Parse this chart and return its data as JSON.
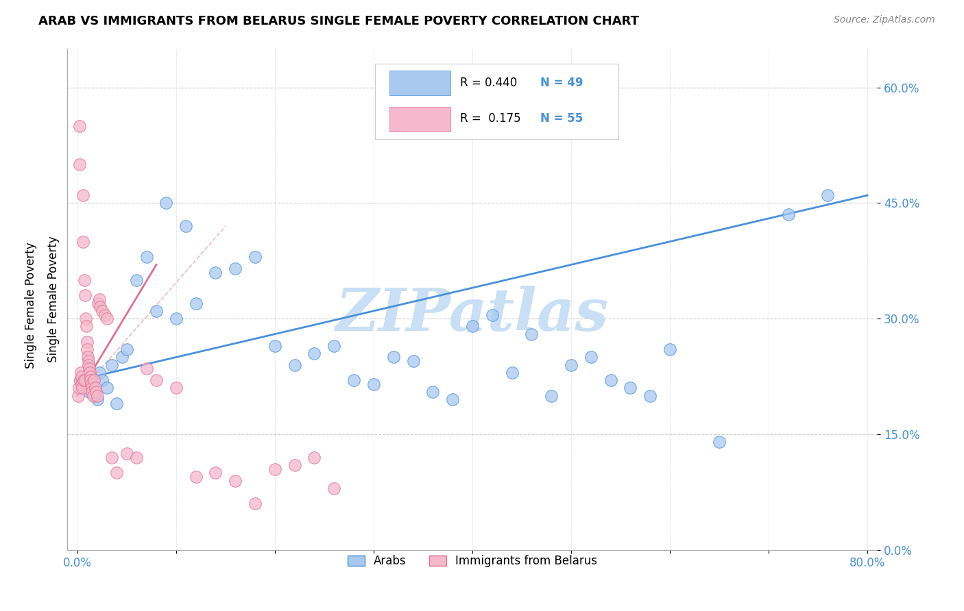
{
  "title": "ARAB VS IMMIGRANTS FROM BELARUS SINGLE FEMALE POVERTY CORRELATION CHART",
  "source": "Source: ZipAtlas.com",
  "xlabel_vals": [
    0.0,
    10.0,
    20.0,
    30.0,
    40.0,
    50.0,
    60.0,
    70.0,
    80.0
  ],
  "xlabel_shown": [
    0.0,
    80.0
  ],
  "ylabel_vals": [
    0.0,
    15.0,
    30.0,
    45.0,
    60.0
  ],
  "xlim": [
    -1,
    81
  ],
  "ylim": [
    0,
    65
  ],
  "legend_label1": "Arabs",
  "legend_label2": "Immigrants from Belarus",
  "R1": 0.44,
  "N1": 49,
  "R2": 0.175,
  "N2": 55,
  "color_arab": "#a8c8f0",
  "color_belarus": "#f5b8cc",
  "color_arab_line": "#4a90d9",
  "color_belarus_line": "#e07090",
  "watermark": "ZIPatlas",
  "watermark_color": "#c8dff5",
  "arab_x": [
    0.3,
    0.5,
    0.8,
    1.0,
    1.2,
    1.5,
    1.8,
    2.0,
    2.2,
    2.5,
    3.0,
    3.5,
    4.0,
    4.5,
    5.0,
    6.0,
    7.0,
    8.0,
    9.0,
    10.0,
    11.0,
    12.0,
    14.0,
    16.0,
    18.0,
    20.0,
    22.0,
    24.0,
    26.0,
    28.0,
    30.0,
    32.0,
    34.0,
    36.0,
    38.0,
    40.0,
    42.0,
    44.0,
    46.0,
    48.0,
    50.0,
    52.0,
    54.0,
    56.0,
    58.0,
    60.0,
    65.0,
    72.0,
    76.0
  ],
  "arab_y": [
    22.0,
    21.5,
    21.0,
    22.5,
    20.5,
    21.0,
    20.0,
    19.5,
    23.0,
    22.0,
    21.0,
    24.0,
    19.0,
    25.0,
    26.0,
    35.0,
    38.0,
    31.0,
    45.0,
    30.0,
    42.0,
    32.0,
    36.0,
    36.5,
    38.0,
    26.5,
    24.0,
    25.5,
    26.5,
    22.0,
    21.5,
    25.0,
    24.5,
    20.5,
    19.5,
    29.0,
    30.5,
    23.0,
    28.0,
    20.0,
    24.0,
    25.0,
    22.0,
    21.0,
    20.0,
    26.0,
    14.0,
    43.5,
    46.0
  ],
  "belarus_x": [
    0.1,
    0.15,
    0.2,
    0.25,
    0.3,
    0.35,
    0.4,
    0.45,
    0.5,
    0.55,
    0.6,
    0.65,
    0.7,
    0.75,
    0.8,
    0.85,
    0.9,
    0.95,
    1.0,
    1.05,
    1.1,
    1.15,
    1.2,
    1.25,
    1.3,
    1.35,
    1.4,
    1.45,
    1.5,
    1.6,
    1.7,
    1.8,
    1.9,
    2.0,
    2.1,
    2.2,
    2.3,
    2.5,
    2.8,
    3.0,
    3.5,
    4.0,
    5.0,
    6.0,
    7.0,
    8.0,
    10.0,
    12.0,
    14.0,
    16.0,
    18.0,
    20.0,
    22.0,
    24.0,
    26.0
  ],
  "belarus_y": [
    20.0,
    21.0,
    55.0,
    50.0,
    22.0,
    23.0,
    22.5,
    21.5,
    21.0,
    46.0,
    40.0,
    22.0,
    35.0,
    33.0,
    22.0,
    30.0,
    29.0,
    27.0,
    26.0,
    25.0,
    24.5,
    24.0,
    23.5,
    23.0,
    22.5,
    22.0,
    21.5,
    21.0,
    20.5,
    20.0,
    22.0,
    21.0,
    20.5,
    20.0,
    32.0,
    32.5,
    31.5,
    31.0,
    30.5,
    30.0,
    12.0,
    10.0,
    12.5,
    12.0,
    23.5,
    22.0,
    21.0,
    9.5,
    10.0,
    9.0,
    6.0,
    10.5,
    11.0,
    12.0,
    8.0
  ]
}
